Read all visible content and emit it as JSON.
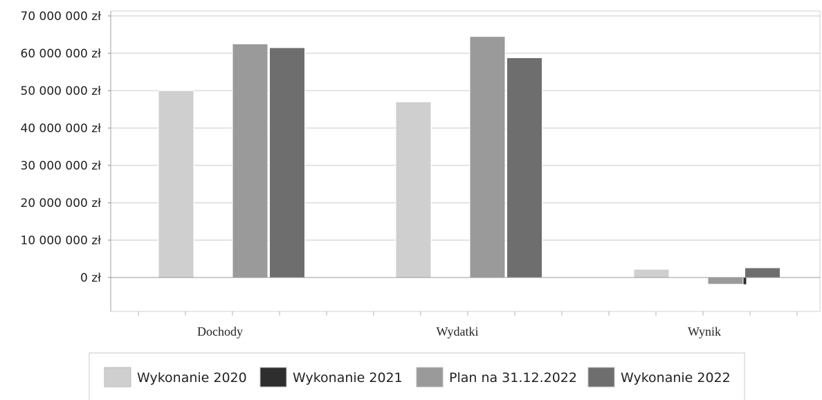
{
  "chart_data": {
    "type": "bar",
    "categories": [
      "Dochody",
      "Wydatki",
      "Wynik"
    ],
    "series": [
      {
        "name": "Wykonanie 2020",
        "color": "#cfcfcf",
        "values": [
          50000000,
          47000000,
          2200000
        ]
      },
      {
        "name": "Wykonanie 2021",
        "color": "#2e2e2e",
        "values": [
          0,
          0,
          -1900000
        ]
      },
      {
        "name": "Plan na 31.12.2022",
        "color": "#9a9a9a",
        "values": [
          62500000,
          64500000,
          -1800000
        ]
      },
      {
        "name": "Wykonanie 2022",
        "color": "#6e6e6e",
        "values": [
          61500000,
          58800000,
          2600000
        ]
      }
    ],
    "y_ticks": [
      0,
      10000000,
      20000000,
      30000000,
      40000000,
      50000000,
      60000000,
      70000000
    ],
    "y_tick_labels": [
      "0 zł",
      "10 000 000 zł",
      "20 000 000 zł",
      "30 000 000 zł",
      "40 000 000 zł",
      "50 000 000 zł",
      "60 000 000 zł",
      "70 000 000 zł"
    ],
    "ylim": [
      -9000000,
      71000000
    ],
    "grid": true,
    "legend_position": "bottom",
    "title": "",
    "xlabel": "",
    "ylabel": ""
  }
}
